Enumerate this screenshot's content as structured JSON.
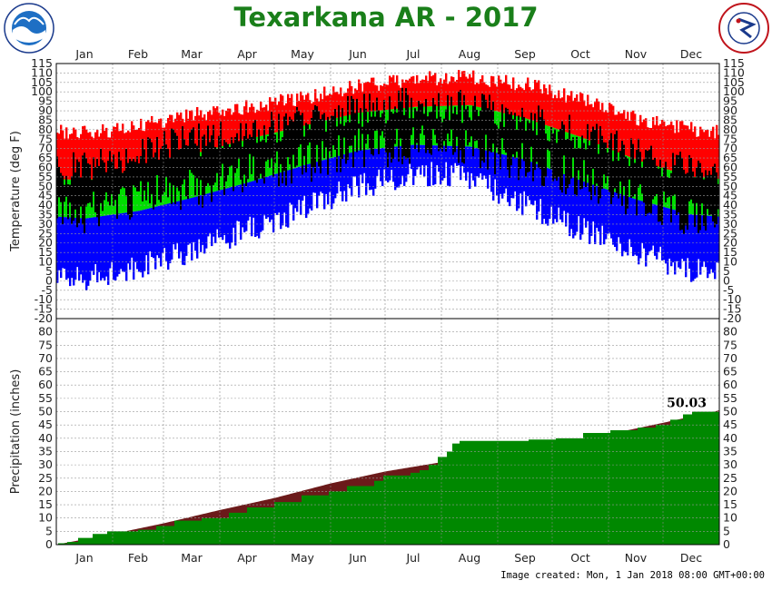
{
  "title": "Texarkana AR - 2017",
  "footer": "Image created: Mon, 1 Jan 2018 08:00 GMT+00:00",
  "logos": {
    "left": "NOAA",
    "right": "NATIONAL WEATHER SERVICE"
  },
  "colors": {
    "title": "#1a7f1a",
    "record": "#ff0000",
    "normal": "#00dd00",
    "observed": "#000000",
    "record_low": "#0000ff",
    "precip_obs": "#008800",
    "precip_normal": "#6b1a1a"
  },
  "chart_data": [
    {
      "type": "area",
      "ylabel": "Temperature (deg F)",
      "ylim": [
        -20,
        115
      ],
      "yticks": [
        115,
        110,
        105,
        100,
        95,
        90,
        85,
        80,
        75,
        70,
        65,
        60,
        55,
        50,
        45,
        40,
        35,
        30,
        25,
        20,
        15,
        10,
        5,
        0,
        -5,
        -10,
        -15,
        -20
      ],
      "months": [
        "Jan",
        "Feb",
        "Mar",
        "Apr",
        "May",
        "Jun",
        "Jul",
        "Aug",
        "Sep",
        "Oct",
        "Nov",
        "Dec"
      ],
      "grid": true,
      "series": [
        {
          "key": "record_high",
          "monthly_mid": [
            78,
            82,
            88,
            92,
            97,
            103,
            107,
            108,
            104,
            96,
            86,
            80
          ]
        },
        {
          "key": "normal_high",
          "monthly_mid": [
            53,
            59,
            67,
            75,
            82,
            89,
            92,
            93,
            86,
            76,
            64,
            55
          ]
        },
        {
          "key": "normal_low",
          "monthly_mid": [
            33,
            37,
            44,
            52,
            61,
            69,
            72,
            71,
            64,
            53,
            43,
            35
          ]
        },
        {
          "key": "record_low",
          "monthly_mid": [
            2,
            8,
            16,
            27,
            38,
            50,
            57,
            55,
            40,
            27,
            15,
            6
          ]
        },
        {
          "key": "observed_high",
          "monthly_mid": [
            60,
            68,
            74,
            80,
            84,
            90,
            94,
            92,
            86,
            78,
            68,
            58
          ]
        },
        {
          "key": "observed_low",
          "monthly_mid": [
            38,
            46,
            50,
            58,
            64,
            72,
            74,
            72,
            64,
            56,
            46,
            36
          ]
        }
      ]
    },
    {
      "type": "area",
      "ylabel": "Precipitation (inches)",
      "ylim": [
        0,
        85
      ],
      "yticks": [
        80,
        75,
        70,
        65,
        60,
        55,
        50,
        45,
        40,
        35,
        30,
        25,
        20,
        15,
        10,
        5,
        0
      ],
      "months": [
        "Jan",
        "Feb",
        "Mar",
        "Apr",
        "May",
        "Jun",
        "Jul",
        "Aug",
        "Sep",
        "Oct",
        "Nov",
        "Dec"
      ],
      "grid": true,
      "annotation": "50.03",
      "series": [
        {
          "key": "observed_cumulative",
          "steps": [
            [
              1,
              0.5
            ],
            [
              6,
              1
            ],
            [
              12,
              2.5
            ],
            [
              20,
              4
            ],
            [
              28,
              5
            ],
            [
              45,
              5.6
            ],
            [
              55,
              7
            ],
            [
              65,
              9
            ],
            [
              80,
              10
            ],
            [
              95,
              12
            ],
            [
              105,
              14
            ],
            [
              120,
              16
            ],
            [
              135,
              18.5
            ],
            [
              150,
              20
            ],
            [
              160,
              22
            ],
            [
              175,
              24
            ],
            [
              180,
              26
            ],
            [
              195,
              27
            ],
            [
              200,
              28
            ],
            [
              205,
              30
            ],
            [
              210,
              33
            ],
            [
              215,
              35
            ],
            [
              218,
              38
            ],
            [
              222,
              39
            ],
            [
              235,
              39
            ],
            [
              260,
              39.5
            ],
            [
              275,
              40
            ],
            [
              290,
              42
            ],
            [
              305,
              43
            ],
            [
              320,
              44
            ],
            [
              330,
              45
            ],
            [
              338,
              47
            ],
            [
              345,
              49
            ],
            [
              350,
              50.03
            ],
            [
              365,
              50.03
            ]
          ]
        },
        {
          "key": "normal_cumulative",
          "monthly_end": [
            4.0,
            8.0,
            13.0,
            17.5,
            23.0,
            27.5,
            31.0,
            33.8,
            37.0,
            41.5,
            45.8,
            50.5
          ]
        }
      ]
    }
  ]
}
